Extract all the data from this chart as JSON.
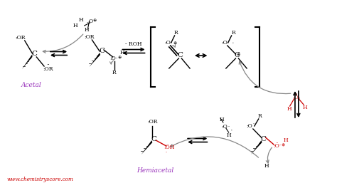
{
  "bg_color": "#ffffff",
  "text_color": "#000000",
  "red_color": "#cc0000",
  "purple_color": "#9933bb",
  "gray_color": "#888888",
  "website": "www.chemistryscore.com",
  "label_acetal": "Acetal",
  "label_hemiacetal": "Hemiacetal"
}
